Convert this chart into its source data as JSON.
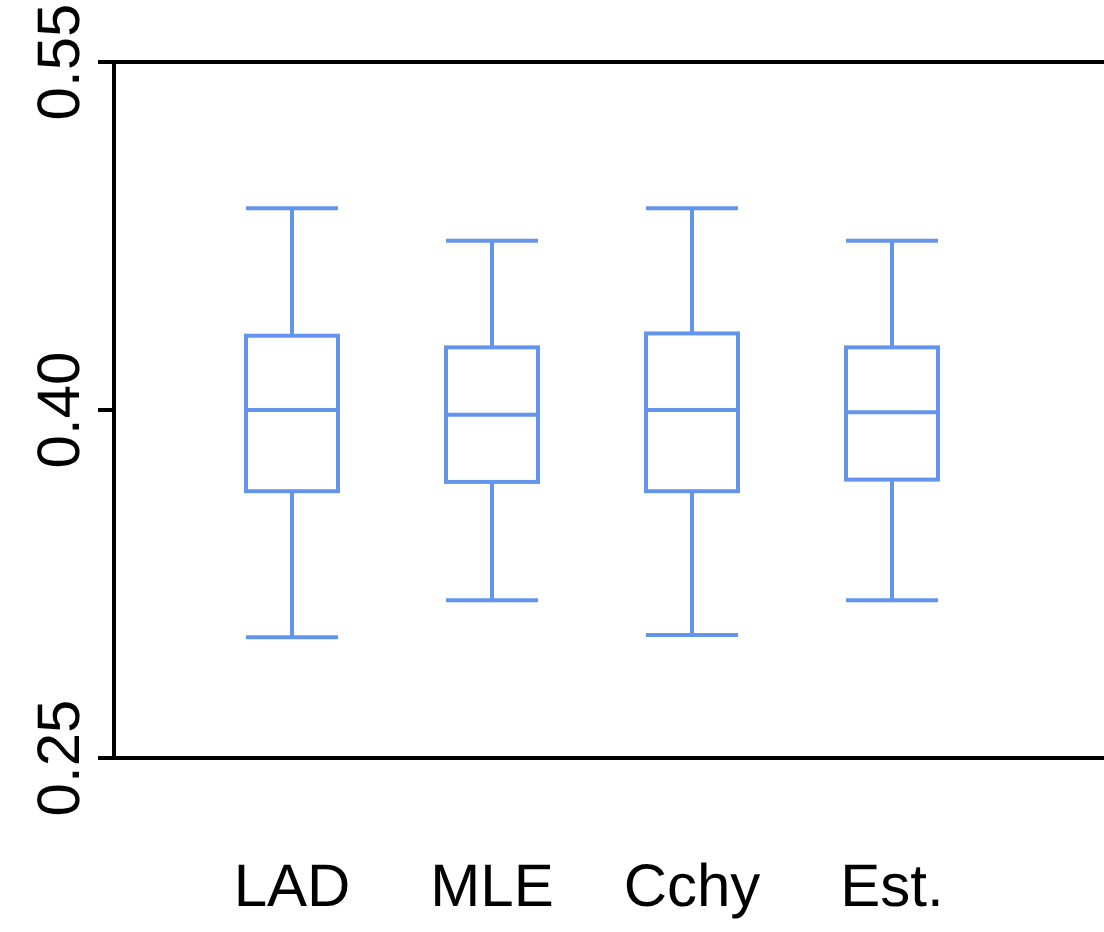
{
  "chart_data": {
    "type": "box",
    "categories": [
      "LAD",
      "MLE",
      "Cchy",
      "Est."
    ],
    "color": "#6495ed",
    "boxes": [
      {
        "low": 0.302,
        "q1": 0.365,
        "median": 0.4,
        "q3": 0.432,
        "high": 0.487
      },
      {
        "low": 0.318,
        "q1": 0.369,
        "median": 0.398,
        "q3": 0.427,
        "high": 0.473
      },
      {
        "low": 0.303,
        "q1": 0.365,
        "median": 0.4,
        "q3": 0.433,
        "high": 0.487
      },
      {
        "low": 0.318,
        "q1": 0.37,
        "median": 0.399,
        "q3": 0.427,
        "high": 0.473
      }
    ],
    "ylim": [
      0.25,
      0.55
    ],
    "yticks": [
      {
        "value": 0.25,
        "label": "0.25"
      },
      {
        "value": 0.4,
        "label": "0.40"
      },
      {
        "value": 0.55,
        "label": "0.55"
      }
    ],
    "grid": false
  }
}
